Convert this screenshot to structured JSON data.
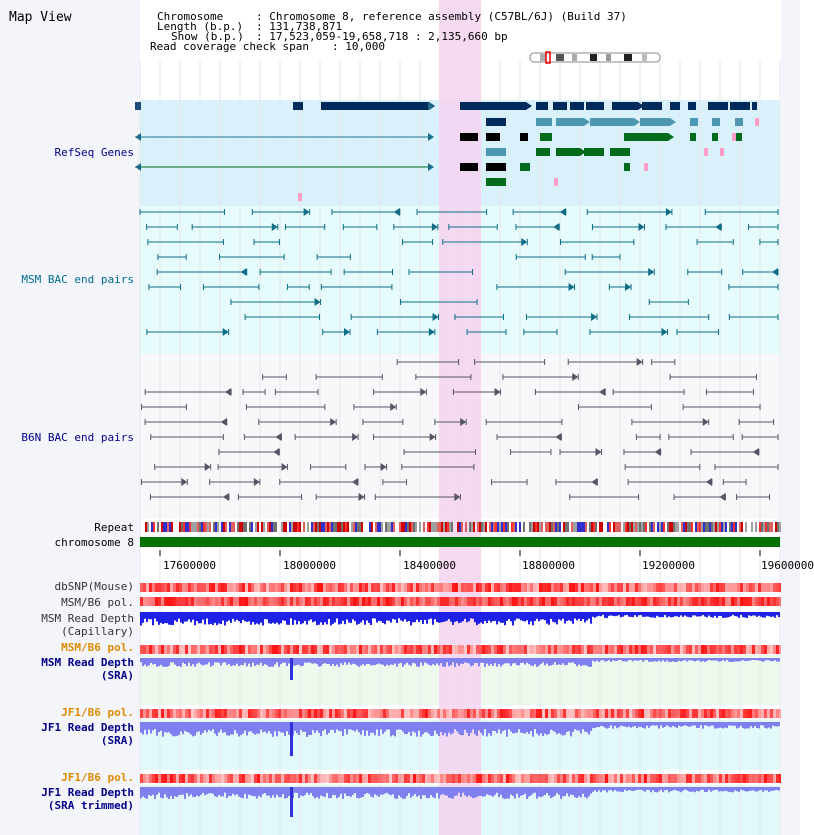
{
  "view": {
    "title": "Map View"
  },
  "header": {
    "chromosome_label": "Chromosome",
    "chromosome_value": ": Chromosome 8, reference assembly (C57BL/6J) (Build 37)",
    "length_label": "Length (b.p.)",
    "length_value": ": 131,738,871",
    "show_label": "Show (b.p.)",
    "show_value": ": 17,523,059-19,658,718 : 2,135,660 bp",
    "coverage_label": "Read coverage check span",
    "coverage_value": ": 10,000"
  },
  "tracks": {
    "refseq": {
      "label": "RefSeq Genes",
      "color": "#00008b"
    },
    "msm_bac": {
      "label": "MSM BAC end pairs",
      "color": "#006b8b"
    },
    "b6n_bac": {
      "label": "B6N BAC end pairs",
      "color": "#00008b"
    },
    "repeat": {
      "label": "Repeat"
    },
    "chromosome": {
      "label": "chromosome 8"
    },
    "dbsnp": {
      "label": "dbSNP(Mouse)"
    },
    "msm_pol_1": {
      "label": "MSM/B6 pol."
    },
    "msm_depth_cap": {
      "label": "MSM Read Depth",
      "sub": "(Capillary)"
    },
    "msm_pol_2": {
      "label": "MSM/B6 pol."
    },
    "msm_depth_sra": {
      "label": "MSM Read Depth",
      "sub": "(SRA)"
    },
    "jf1_pol_1": {
      "label": "JF1/B6 pol."
    },
    "jf1_depth_sra": {
      "label": "JF1 Read Depth",
      "sub": "(SRA)"
    },
    "jf1_pol_2": {
      "label": "JF1/B6 pol."
    },
    "jf1_depth_trim": {
      "label": "JF1 Read Depth",
      "sub": "(SRA trimmed)"
    }
  },
  "axis": {
    "ticks": [
      "17600000",
      "18000000",
      "18400000",
      "18800000",
      "19200000",
      "19600000"
    ]
  },
  "colors": {
    "refseq_bg": "#d9f1fb",
    "msm_bac_bg": "#e6fbfb",
    "b6n_bac_bg": "#f8f8fb",
    "highlight": "#f5d3f0",
    "chromosome_bar": "#007000",
    "gene_dark": "#002a5c",
    "gene_mid": "#4d98b0",
    "gene_green": "#006b1a",
    "depth_cap": "#1f22e6",
    "depth_sra": "#7f7ff0",
    "pol_orange": "#e08a00"
  }
}
